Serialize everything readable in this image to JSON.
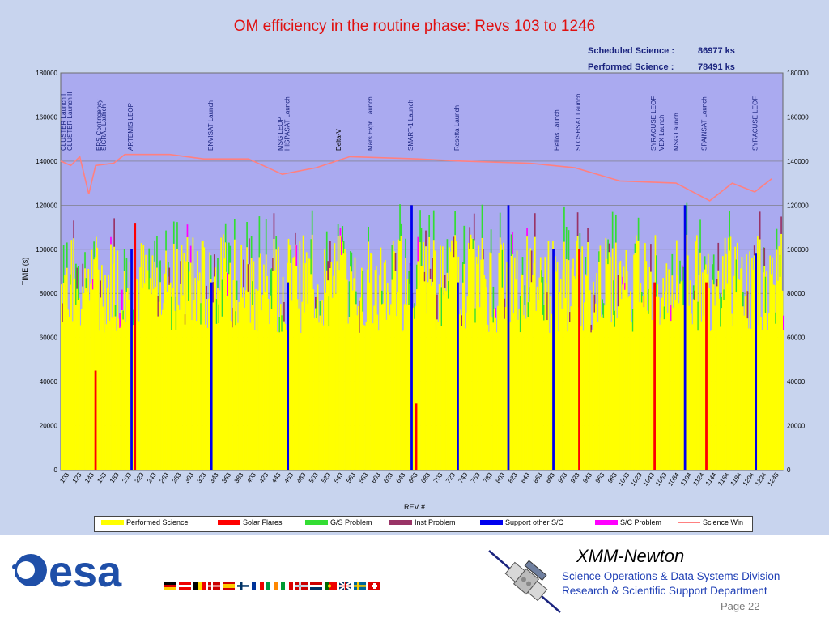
{
  "chart_data": {
    "type": "bar",
    "title": "OM efficiency in the routine phase: Revs  103 to  1246",
    "summary": [
      {
        "label": "Scheduled Science :",
        "value": "86977 ks"
      },
      {
        "label": "Performed Science :",
        "value": "78491 ks"
      }
    ],
    "ylabel": "TIME (s)",
    "xlabel": "REV #",
    "ylim": [
      0,
      180000
    ],
    "yticks": [
      "0",
      "20000",
      "40000",
      "60000",
      "80000",
      "100000",
      "120000",
      "140000",
      "160000",
      "180000"
    ],
    "xticks": [
      "103",
      "123",
      "143",
      "163",
      "183",
      "203",
      "223",
      "243",
      "263",
      "283",
      "303",
      "323",
      "343",
      "363",
      "383",
      "403",
      "423",
      "443",
      "463",
      "483",
      "503",
      "523",
      "543",
      "563",
      "583",
      "603",
      "623",
      "643",
      "663",
      "683",
      "703",
      "723",
      "743",
      "763",
      "783",
      "803",
      "823",
      "843",
      "863",
      "883",
      "903",
      "923",
      "943",
      "963",
      "983",
      "1003",
      "1023",
      "1043",
      "1063",
      "1084",
      "1104",
      "1124",
      "1144",
      "1164",
      "1184",
      "1204",
      "1224",
      "1245"
    ],
    "events": [
      {
        "rev": 105,
        "label": "CLUSTER Launch I"
      },
      {
        "rev": 111,
        "label": "CLUSTER Launch II"
      },
      {
        "rev": 137,
        "label": "ERS Contingency"
      },
      {
        "rev": 141,
        "label": "SICRAL Launch"
      },
      {
        "rev": 165,
        "label": "ARTEMIS LEOP"
      },
      {
        "rev": 236,
        "label": "ENVISAT Launch"
      },
      {
        "rev": 298,
        "label": "MSG LEOP"
      },
      {
        "rev": 304,
        "label": "HISPASAT Launch"
      },
      {
        "rev": 350,
        "label": "Delta-V"
      },
      {
        "rev": 378,
        "label": "Mars Expr. Launch"
      },
      {
        "rev": 414,
        "label": "SMART-1 Launch"
      },
      {
        "rev": 455,
        "label": "Rosetta Launch"
      },
      {
        "rev": 544,
        "label": "Helios Launch"
      },
      {
        "rev": 563,
        "label": "SLOSHSAT Launch"
      },
      {
        "rev": 630,
        "label": "SYRACUSE LEOF"
      },
      {
        "rev": 637,
        "label": "VEX Launch"
      },
      {
        "rev": 650,
        "label": "MSG Launch"
      },
      {
        "rev": 675,
        "label": "SPAINSAT Launch"
      },
      {
        "rev": 720,
        "label": "SYRACUSE LEOF"
      }
    ],
    "series": [
      {
        "name": "Performed Science",
        "color": "#ffff00"
      },
      {
        "name": "Solar Flares",
        "color": "#ff0000"
      },
      {
        "name": "G/S Problem",
        "color": "#33dd33"
      },
      {
        "name": "Inst Problem",
        "color": "#993366"
      },
      {
        "name": "Support other S/C",
        "color": "#0000ee"
      },
      {
        "name": "S/C Problem",
        "color": "#ff00ff"
      },
      {
        "name": "Science Win",
        "color": "#ff8080"
      }
    ],
    "science_window": [
      {
        "rev": 103,
        "value": 140000
      },
      {
        "rev": 112,
        "value": 138000
      },
      {
        "rev": 120,
        "value": 142000
      },
      {
        "rev": 128,
        "value": 125000
      },
      {
        "rev": 134,
        "value": 138000
      },
      {
        "rev": 150,
        "value": 139000
      },
      {
        "rev": 160,
        "value": 143000
      },
      {
        "rev": 200,
        "value": 143000
      },
      {
        "rev": 230,
        "value": 141000
      },
      {
        "rev": 270,
        "value": 141000
      },
      {
        "rev": 300,
        "value": 134000
      },
      {
        "rev": 330,
        "value": 137000
      },
      {
        "rev": 360,
        "value": 142000
      },
      {
        "rev": 420,
        "value": 141000
      },
      {
        "rev": 460,
        "value": 140000
      },
      {
        "rev": 520,
        "value": 139000
      },
      {
        "rev": 560,
        "value": 137000
      },
      {
        "rev": 600,
        "value": 131000
      },
      {
        "rev": 650,
        "value": 130000
      },
      {
        "rev": 680,
        "value": 122000
      },
      {
        "rev": 700,
        "value": 130000
      },
      {
        "rev": 720,
        "value": 126000
      },
      {
        "rev": 735,
        "value": 132000
      }
    ]
  },
  "footer": {
    "org": "esa",
    "mission": "XMM-Newton",
    "division": "Science Operations & Data Systems Division",
    "department": "Research & Scientific Support Department",
    "page": "Page 22"
  }
}
